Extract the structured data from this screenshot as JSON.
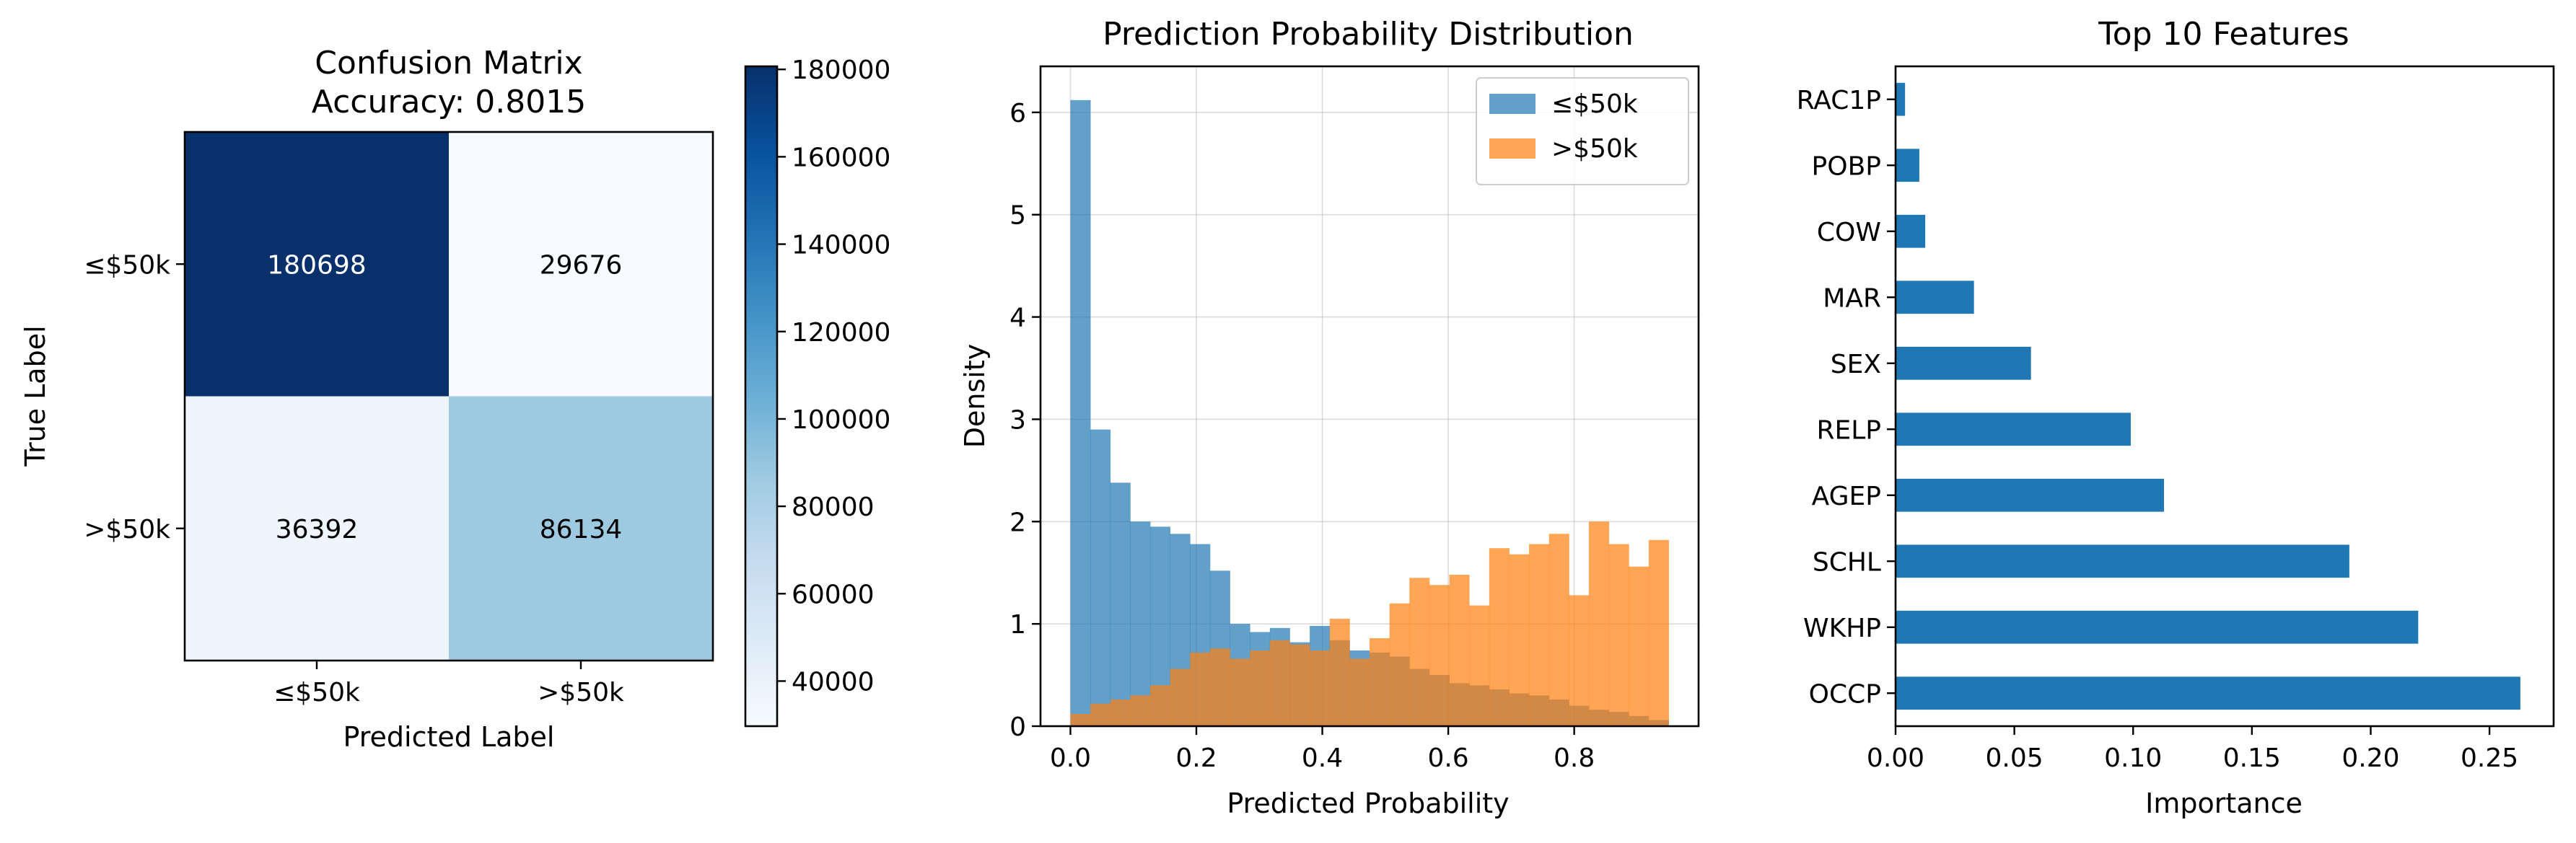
{
  "chart_data": [
    {
      "type": "heatmap",
      "title": "Confusion Matrix",
      "subtitle": "Accuracy: 0.8015",
      "xlabel": "Predicted Label",
      "ylabel": "True Label",
      "x_categories": [
        "≤$50k",
        ">$50k"
      ],
      "y_categories": [
        "≤$50k",
        ">$50k"
      ],
      "values": [
        [
          180698,
          29676
        ],
        [
          36392,
          86134
        ]
      ],
      "colormap": "Blues",
      "colorbar": {
        "min": 29676,
        "max": 180698,
        "ticks": [
          40000,
          60000,
          80000,
          100000,
          120000,
          140000,
          160000,
          180000
        ],
        "tick_labels": [
          "40000",
          "60000",
          "80000",
          "100000",
          "120000",
          "140000",
          "160000",
          "180000"
        ]
      }
    },
    {
      "type": "bar",
      "subtype": "histogram-overlay",
      "title": "Prediction Probability Distribution",
      "xlabel": "Predicted Probability",
      "ylabel": "Density",
      "xlim": [
        -0.0475,
        0.9975
      ],
      "ylim": [
        0,
        6.45
      ],
      "xticks": [
        0.0,
        0.2,
        0.4,
        0.6,
        0.8
      ],
      "xtick_labels": [
        "0.0",
        "0.2",
        "0.4",
        "0.6",
        "0.8"
      ],
      "yticks": [
        0,
        1,
        2,
        3,
        4,
        5,
        6
      ],
      "ytick_labels": [
        "0",
        "1",
        "2",
        "3",
        "4",
        "5",
        "6"
      ],
      "grid": true,
      "legend": "top-right",
      "bin_edges": [
        0.0,
        0.0317,
        0.0633,
        0.095,
        0.1267,
        0.1583,
        0.19,
        0.2217,
        0.2533,
        0.285,
        0.3167,
        0.3483,
        0.38,
        0.4117,
        0.4433,
        0.475,
        0.5067,
        0.5383,
        0.57,
        0.6017,
        0.6333,
        0.665,
        0.6967,
        0.7283,
        0.76,
        0.7917,
        0.8233,
        0.855,
        0.8867,
        0.9183,
        0.95
      ],
      "series": [
        {
          "name": "≤$50k",
          "color": "#1f77b4",
          "values": [
            6.12,
            2.9,
            2.38,
            2.0,
            1.95,
            1.88,
            1.78,
            1.52,
            1.0,
            0.92,
            0.96,
            0.82,
            0.98,
            0.84,
            0.74,
            0.72,
            0.68,
            0.56,
            0.5,
            0.42,
            0.4,
            0.36,
            0.32,
            0.3,
            0.26,
            0.2,
            0.16,
            0.14,
            0.1,
            0.06
          ]
        },
        {
          "name": ">$50k",
          "color": "#ff7f0e",
          "values": [
            0.12,
            0.22,
            0.26,
            0.3,
            0.4,
            0.56,
            0.72,
            0.76,
            0.66,
            0.74,
            0.84,
            0.8,
            0.74,
            1.05,
            0.66,
            0.86,
            1.2,
            1.45,
            1.38,
            1.48,
            1.18,
            1.74,
            1.68,
            1.78,
            1.88,
            1.28,
            2.0,
            1.78,
            1.56,
            1.82
          ]
        }
      ]
    },
    {
      "type": "bar",
      "orientation": "horizontal",
      "title": "Top 10 Features",
      "xlabel": "Importance",
      "ylabel": "",
      "xlim": [
        0,
        0.277
      ],
      "xticks": [
        0.0,
        0.05,
        0.1,
        0.15,
        0.2,
        0.25
      ],
      "xtick_labels": [
        "0.00",
        "0.05",
        "0.10",
        "0.15",
        "0.20",
        "0.25"
      ],
      "categories": [
        "RAC1P",
        "POBP",
        "COW",
        "MAR",
        "SEX",
        "RELP",
        "AGEP",
        "SCHL",
        "WKHP",
        "OCCP"
      ],
      "values": [
        0.004,
        0.01,
        0.0125,
        0.033,
        0.057,
        0.099,
        0.113,
        0.191,
        0.22,
        0.263
      ],
      "color": "#1f77b4"
    }
  ]
}
